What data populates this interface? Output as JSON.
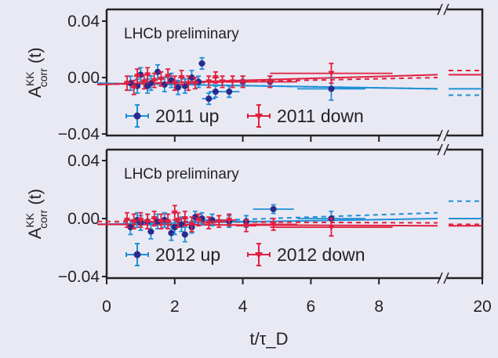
{
  "chart_data": {
    "type": "scatter",
    "xlabel": "t/τ_D",
    "ylabel": "A^KK_corr (t)",
    "x_ticks": [
      "0",
      "2",
      "4",
      "6",
      "8",
      "20"
    ],
    "x_tick_values": [
      0,
      2,
      4,
      6,
      8,
      20
    ],
    "x_axis_break": [
      9.4,
      19
    ],
    "xlim": [
      0,
      20
    ],
    "colors": {
      "up": "#1f8fd6",
      "up_marker": "#2a2a8c",
      "down": "#e0203f"
    },
    "panels": [
      {
        "annotation": "LHCb preliminary",
        "ylim": [
          -0.042,
          0.047
        ],
        "y_ticks": [
          "0.04",
          "0.00",
          "−0.04"
        ],
        "y_tick_values": [
          0.04,
          0.0,
          -0.04
        ],
        "series": [
          {
            "name": "2011 up",
            "key": "up",
            "x": [
              0.7,
              0.9,
              1.0,
              1.2,
              1.3,
              1.5,
              1.7,
              1.9,
              2.1,
              2.3,
              2.5,
              2.7,
              2.8,
              3.0,
              3.2,
              3.6,
              4.0,
              4.8,
              6.6
            ],
            "y": [
              -0.004,
              -0.006,
              0.002,
              -0.006,
              -0.004,
              0.004,
              -0.005,
              -0.002,
              -0.007,
              -0.006,
              0.0,
              -0.003,
              0.01,
              -0.015,
              -0.01,
              -0.01,
              -0.003,
              -0.003,
              -0.008
            ],
            "yerr": [
              0.005,
              0.005,
              0.005,
              0.005,
              0.005,
              0.005,
              0.005,
              0.005,
              0.005,
              0.005,
              0.005,
              0.004,
              0.004,
              0.004,
              0.004,
              0.004,
              0.004,
              0.004,
              0.008
            ],
            "xerr": [
              0.1,
              0.1,
              0.1,
              0.1,
              0.1,
              0.1,
              0.1,
              0.1,
              0.1,
              0.1,
              0.1,
              0.1,
              0.1,
              0.2,
              0.2,
              0.3,
              0.3,
              0.8,
              1.0
            ]
          },
          {
            "name": "2011 down",
            "key": "down",
            "x": [
              0.6,
              0.8,
              0.9,
              1.1,
              1.2,
              1.4,
              1.6,
              1.8,
              2.0,
              2.2,
              2.4,
              2.6,
              3.0,
              3.2,
              3.4,
              3.7,
              4.0,
              4.8,
              6.6
            ],
            "y": [
              -0.004,
              -0.007,
              0.001,
              -0.003,
              0.002,
              -0.002,
              -0.001,
              0.001,
              -0.004,
              0.0,
              -0.004,
              -0.004,
              -0.003,
              0.0,
              -0.003,
              -0.003,
              -0.003,
              -0.003,
              0.003
            ],
            "yerr": [
              0.005,
              0.005,
              0.005,
              0.005,
              0.005,
              0.005,
              0.005,
              0.005,
              0.005,
              0.005,
              0.005,
              0.004,
              0.004,
              0.004,
              0.004,
              0.004,
              0.004,
              0.004,
              0.007
            ],
            "xerr": [
              0.1,
              0.1,
              0.1,
              0.1,
              0.1,
              0.1,
              0.1,
              0.1,
              0.1,
              0.1,
              0.1,
              0.1,
              0.1,
              0.1,
              0.2,
              0.3,
              0.3,
              0.8,
              1.8
            ]
          }
        ],
        "fits": [
          {
            "key": "up",
            "style": "solid",
            "y_start": -0.004,
            "y_end": -0.008,
            "y_after_break": -0.008
          },
          {
            "key": "up",
            "style": "dashed",
            "y_start": -0.004,
            "y_end": -0.008,
            "y_after_break": -0.0125
          },
          {
            "key": "down",
            "style": "solid",
            "y_start": -0.005,
            "y_end": 0.002,
            "y_after_break": 0.002
          },
          {
            "key": "down",
            "style": "dashed",
            "y_start": -0.005,
            "y_end": 0.0,
            "y_after_break": 0.005
          }
        ]
      },
      {
        "annotation": "LHCb preliminary",
        "ylim": [
          -0.042,
          0.047
        ],
        "y_ticks": [
          "0.04",
          "0.00",
          "−0.04"
        ],
        "y_tick_values": [
          0.04,
          0.0,
          -0.04
        ],
        "series": [
          {
            "name": "2012 up",
            "key": "up",
            "x": [
              0.7,
              0.9,
              1.0,
              1.2,
              1.3,
              1.5,
              1.7,
              1.9,
              2.0,
              2.2,
              2.3,
              2.5,
              2.6,
              2.8,
              3.1,
              3.6,
              4.1,
              4.9,
              6.6
            ],
            "y": [
              -0.006,
              -0.001,
              -0.003,
              -0.002,
              -0.009,
              -0.002,
              -0.001,
              -0.01,
              -0.006,
              -0.004,
              -0.011,
              -0.006,
              0.001,
              0.0,
              -0.001,
              -0.002,
              -0.002,
              0.0065,
              0.0
            ],
            "yerr": [
              0.005,
              0.005,
              0.005,
              0.005,
              0.005,
              0.005,
              0.005,
              0.005,
              0.005,
              0.005,
              0.005,
              0.004,
              0.004,
              0.004,
              0.004,
              0.004,
              0.004,
              0.003,
              0.005
            ],
            "xerr": [
              0.1,
              0.1,
              0.1,
              0.1,
              0.1,
              0.1,
              0.1,
              0.1,
              0.1,
              0.1,
              0.1,
              0.1,
              0.1,
              0.1,
              0.2,
              0.3,
              0.3,
              0.6,
              1.0
            ]
          },
          {
            "name": "2012 down",
            "key": "down",
            "x": [
              0.6,
              0.8,
              1.0,
              1.2,
              1.4,
              1.6,
              1.8,
              2.0,
              2.1,
              2.3,
              2.5,
              2.7,
              3.0,
              3.3,
              3.6,
              4.1,
              4.9,
              6.6
            ],
            "y": [
              -0.001,
              -0.002,
              -0.001,
              -0.002,
              0.0,
              -0.002,
              -0.002,
              0.004,
              -0.001,
              0.0,
              -0.004,
              -0.001,
              -0.003,
              -0.002,
              -0.001,
              -0.005,
              -0.004,
              -0.006
            ],
            "yerr": [
              0.005,
              0.005,
              0.005,
              0.005,
              0.005,
              0.005,
              0.005,
              0.005,
              0.005,
              0.005,
              0.005,
              0.004,
              0.004,
              0.004,
              0.004,
              0.004,
              0.004,
              0.006
            ],
            "xerr": [
              0.1,
              0.1,
              0.1,
              0.1,
              0.1,
              0.1,
              0.1,
              0.1,
              0.1,
              0.1,
              0.1,
              0.1,
              0.2,
              0.2,
              0.2,
              0.3,
              0.7,
              1.8
            ]
          }
        ],
        "fits": [
          {
            "key": "up",
            "style": "solid",
            "y_start": -0.004,
            "y_end": 0.0,
            "y_after_break": 0.0
          },
          {
            "key": "up",
            "style": "dashed",
            "y_start": -0.004,
            "y_end": 0.004,
            "y_after_break": 0.012
          },
          {
            "key": "down",
            "style": "solid",
            "y_start": -0.004,
            "y_end": -0.005,
            "y_after_break": -0.005
          },
          {
            "key": "down",
            "style": "dashed",
            "y_start": -0.002,
            "y_end": -0.003,
            "y_after_break": -0.004
          }
        ]
      }
    ]
  }
}
